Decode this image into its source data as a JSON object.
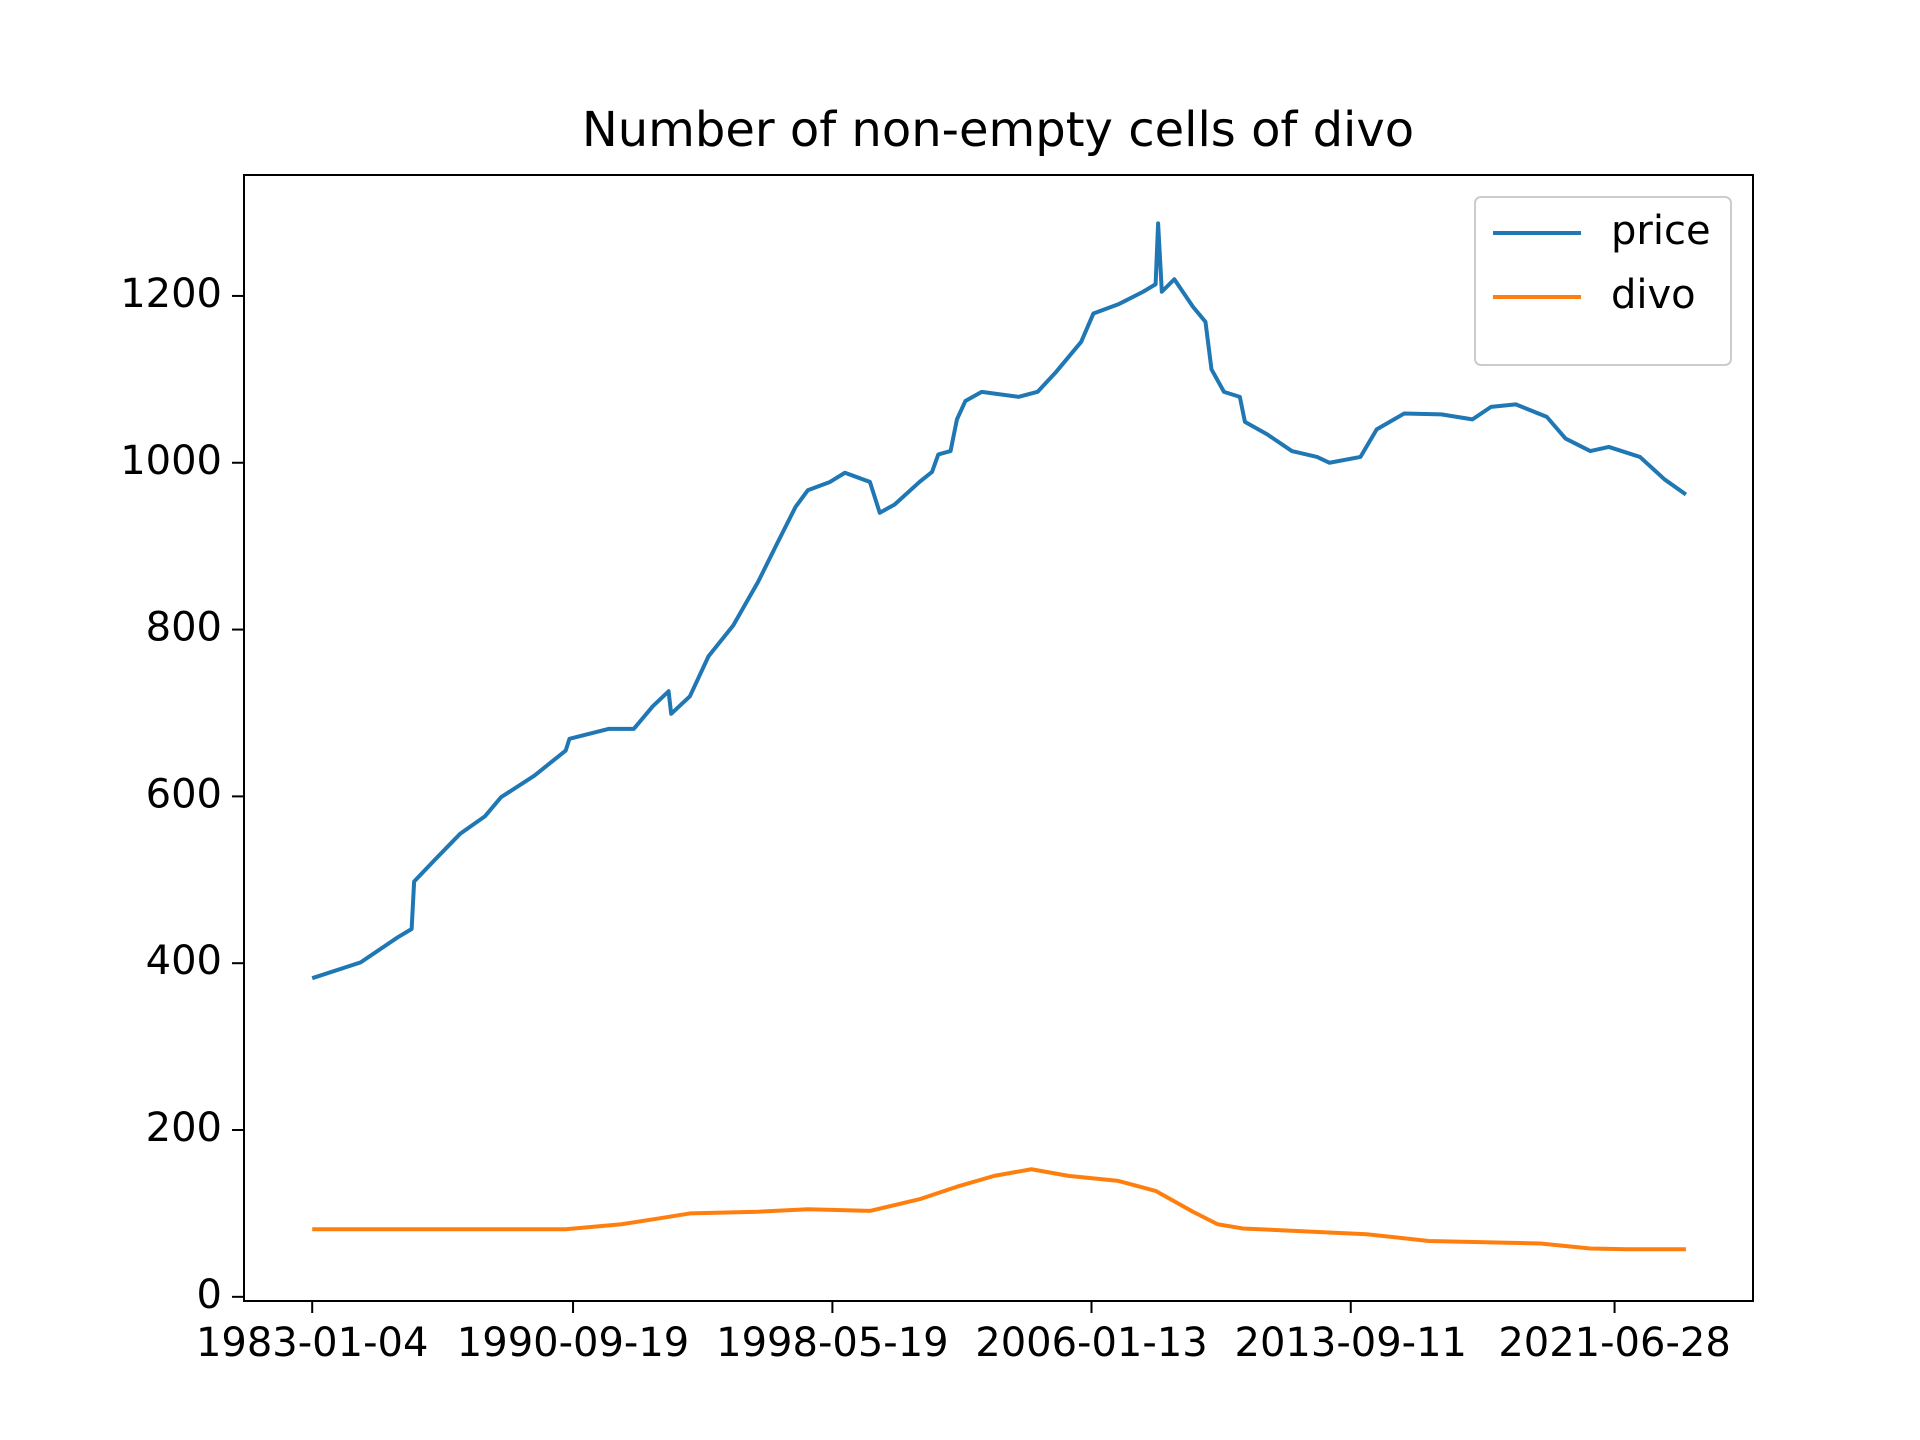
{
  "chart_data": {
    "type": "line",
    "title": "Number of non-empty cells of divo",
    "xlim": [
      "1980-12-29",
      "2025-07-31"
    ],
    "xticks": [
      "1983-01-04",
      "1990-09-19",
      "1998-05-19",
      "2006-01-13",
      "2013-09-11",
      "2021-06-28"
    ],
    "ylim": [
      -5,
      1345
    ],
    "yticks": [
      0,
      200,
      400,
      600,
      800,
      1000,
      1200
    ],
    "legend": "upper right",
    "grid": false,
    "series": [
      {
        "name": "price",
        "color": "#1f77b4",
        "x": [
          "1983-01-04",
          "1984-06-10",
          "1985-07-15",
          "1985-12-12",
          "1986-01-08",
          "1986-08-20",
          "1987-05-18",
          "1988-02-10",
          "1988-08-03",
          "1989-07-30",
          "1990-07-02",
          "1990-08-11",
          "1991-10-12",
          "1992-07-06",
          "1993-01-26",
          "1993-07-16",
          "1993-08-13",
          "1994-03-03",
          "1994-09-20",
          "1995-06-14",
          "1996-03-07",
          "1996-09-24",
          "1997-04-16",
          "1997-08-26",
          "1998-04-23",
          "1998-10-01",
          "1999-06-28",
          "1999-10-12",
          "2000-03-21",
          "2000-12-14",
          "2001-04-28",
          "2001-07-05",
          "2001-11-14",
          "2002-01-22",
          "2002-04-23",
          "2002-10-16",
          "2003-11-20",
          "2004-06-10",
          "2004-12-28",
          "2005-09-24",
          "2006-02-03",
          "2006-10-30",
          "2007-07-24",
          "2007-12-06",
          "2008-01-02",
          "2008-02-11",
          "2008-06-25",
          "2009-01-12",
          "2009-05-27",
          "2009-07-31",
          "2009-12-13",
          "2010-06-02",
          "2010-07-27",
          "2011-03-25",
          "2011-12-16",
          "2012-09-12",
          "2013-01-25",
          "2013-12-25",
          "2014-06-18",
          "2015-04-09",
          "2016-05-15",
          "2017-04-16",
          "2017-11-03",
          "2018-07-28",
          "2019-06-28",
          "2020-01-16",
          "2020-10-09",
          "2021-04-27",
          "2022-03-29",
          "2022-12-20",
          "2023-08-07"
        ],
        "values": [
          382,
          401,
          431,
          441,
          498,
          524,
          555,
          576,
          599,
          625,
          655,
          669,
          681,
          681,
          708,
          726,
          699,
          720,
          768,
          805,
          857,
          902,
          947,
          967,
          977,
          988,
          977,
          940,
          950,
          977,
          989,
          1010,
          1014,
          1052,
          1074,
          1085,
          1079,
          1085,
          1109,
          1145,
          1179,
          1190,
          1205,
          1214,
          1287,
          1205,
          1220,
          1187,
          1169,
          1112,
          1085,
          1079,
          1049,
          1034,
          1014,
          1007,
          1000,
          1007,
          1040,
          1059,
          1058,
          1052,
          1067,
          1070,
          1055,
          1029,
          1014,
          1019,
          1007,
          980,
          962
        ]
      },
      {
        "name": "divo",
        "color": "#ff7f0e",
        "x": [
          "1983-01-04",
          "1990-07-02",
          "1992-02-24",
          "1993-04-02",
          "1994-03-03",
          "1996-03-07",
          "1997-08-26",
          "1999-06-28",
          "2000-12-14",
          "2002-01-22",
          "2003-02-28",
          "2004-04-05",
          "2005-05-11",
          "2006-10-30",
          "2007-12-06",
          "2009-01-12",
          "2009-10-05",
          "2010-07-02",
          "2014-03-03",
          "2016-01-01",
          "2019-04-20",
          "2020-10-09",
          "2021-11-14",
          "2023-08-07"
        ],
        "values": [
          81,
          81,
          87,
          94,
          100,
          102,
          105,
          103,
          117,
          132,
          145,
          153,
          145,
          139,
          127,
          102,
          87,
          82,
          75,
          67,
          64,
          58,
          57,
          57
        ]
      }
    ]
  }
}
